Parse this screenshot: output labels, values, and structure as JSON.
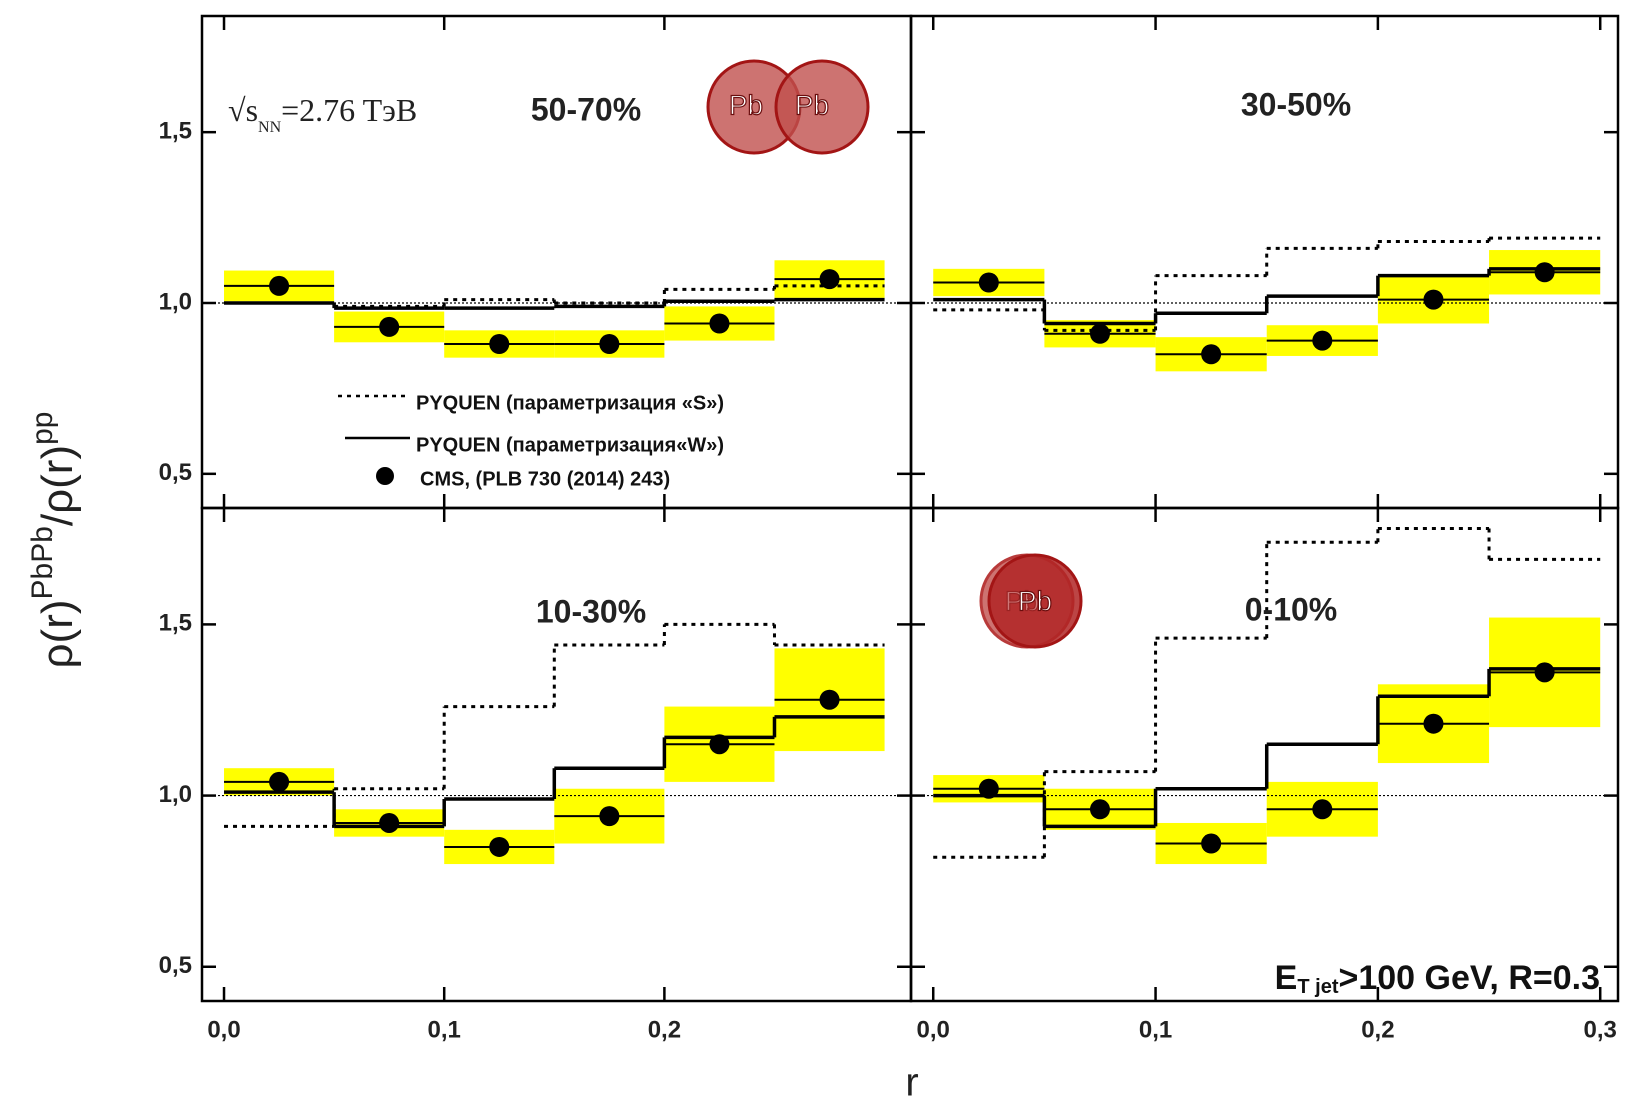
{
  "figure": {
    "y_label": {
      "num": "ρ(r)",
      "num_sup": "PbPb",
      "den": "/ρ(r)",
      "den_sup": "pp"
    },
    "x_label": "r",
    "sqrt_s": {
      "prefix": "√s",
      "sub": "NN",
      "suffix": "=2.76 TэВ"
    },
    "jet_cut": {
      "prefix": "E",
      "sub": "T jet",
      "suffix": ">100 GeV, R=0.3"
    },
    "legend": [
      {
        "name": "PYQUEN (параметризация «S»)",
        "style": "dotted",
        "color": "#000000"
      },
      {
        "name": "PYQUEN (параметризация«W»)",
        "style": "solid",
        "color": "#000000"
      },
      {
        "name": "CMS, (PLB 730 (2014) 243)",
        "style": "marker",
        "color": "#000000"
      }
    ],
    "nuclei_peripheral": [
      "Pb",
      "Pb"
    ],
    "nuclei_central": [
      "Pb",
      "Pb"
    ]
  },
  "chart_data": [
    {
      "type": "step",
      "title": "50-70%",
      "bins": [
        0,
        0.05,
        0.1,
        0.15,
        0.2,
        0.25,
        0.3
      ],
      "x": [
        0.025,
        0.075,
        0.125,
        0.175,
        0.225,
        0.275
      ],
      "pyquen_s": [
        1.0,
        0.99,
        1.01,
        1.0,
        1.04,
        1.05
      ],
      "pyquen_w": [
        1.0,
        0.985,
        0.985,
        0.99,
        1.005,
        1.01
      ],
      "cms_values": [
        1.05,
        0.93,
        0.88,
        0.88,
        0.94,
        1.07
      ],
      "cms_sys_errors": [
        0.045,
        0.045,
        0.04,
        0.04,
        0.05,
        0.055
      ],
      "reference_line": 1,
      "sys_color": "#ffff00",
      "line_color": "#000000",
      "xlim": [
        -0.01,
        0.312
      ],
      "ylim": [
        0.4,
        1.84
      ],
      "yticks": [
        {
          "value": 0.5,
          "label": "0,5"
        },
        {
          "value": 1.0,
          "label": "1,0"
        },
        {
          "value": 1.5,
          "label": "1,5"
        }
      ]
    },
    {
      "type": "step",
      "title": "30-50%",
      "bins": [
        0,
        0.05,
        0.1,
        0.15,
        0.2,
        0.25,
        0.3
      ],
      "x": [
        0.025,
        0.075,
        0.125,
        0.175,
        0.225,
        0.275
      ],
      "pyquen_s": [
        0.98,
        0.92,
        1.08,
        1.16,
        1.18,
        1.19
      ],
      "pyquen_w": [
        1.01,
        0.94,
        0.97,
        1.02,
        1.08,
        1.1
      ],
      "cms_values": [
        1.06,
        0.91,
        0.85,
        0.89,
        1.01,
        1.09
      ],
      "cms_sys_errors": [
        0.04,
        0.04,
        0.05,
        0.045,
        0.07,
        0.065
      ],
      "reference_line": 1,
      "sys_color": "#ffff00",
      "line_color": "#000000",
      "xlim": [
        -0.01,
        0.308
      ],
      "ylim": [
        0.4,
        1.84
      ]
    },
    {
      "type": "step",
      "title": "10-30%",
      "bins": [
        0,
        0.05,
        0.1,
        0.15,
        0.2,
        0.25,
        0.3
      ],
      "x": [
        0.025,
        0.075,
        0.125,
        0.175,
        0.225,
        0.275
      ],
      "pyquen_s": [
        0.91,
        1.02,
        1.26,
        1.44,
        1.5,
        1.44
      ],
      "pyquen_w": [
        1.01,
        0.91,
        0.99,
        1.08,
        1.17,
        1.23
      ],
      "cms_values": [
        1.04,
        0.92,
        0.85,
        0.94,
        1.15,
        1.28
      ],
      "cms_sys_errors": [
        0.04,
        0.04,
        0.05,
        0.08,
        0.11,
        0.15
      ],
      "reference_line": 1,
      "sys_color": "#ffff00",
      "line_color": "#000000",
      "xlim": [
        -0.01,
        0.312
      ],
      "ylim": [
        0.4,
        1.84
      ],
      "yticks": [
        {
          "value": 0.5,
          "label": "0,5"
        },
        {
          "value": 1.0,
          "label": "1,0"
        },
        {
          "value": 1.5,
          "label": "1,5"
        }
      ],
      "xticks": [
        {
          "value": 0,
          "label": "0,0"
        },
        {
          "value": 0.1,
          "label": "0,1"
        },
        {
          "value": 0.2,
          "label": "0,2"
        }
      ]
    },
    {
      "type": "step",
      "title": "0-10%",
      "bins": [
        0,
        0.05,
        0.1,
        0.15,
        0.2,
        0.25,
        0.3
      ],
      "x": [
        0.025,
        0.075,
        0.125,
        0.175,
        0.225,
        0.275
      ],
      "pyquen_s": [
        0.82,
        1.07,
        1.46,
        1.74,
        1.78,
        1.69
      ],
      "pyquen_w": [
        1.0,
        0.91,
        1.02,
        1.15,
        1.29,
        1.37
      ],
      "cms_values": [
        1.02,
        0.96,
        0.86,
        0.96,
        1.21,
        1.36
      ],
      "cms_sys_errors": [
        0.04,
        0.06,
        0.06,
        0.08,
        0.115,
        0.16
      ],
      "reference_line": 1,
      "sys_color": "#ffff00",
      "line_color": "#000000",
      "xlim": [
        -0.01,
        0.308
      ],
      "ylim": [
        0.4,
        1.84
      ],
      "xticks": [
        {
          "value": 0,
          "label": "0,0"
        },
        {
          "value": 0.1,
          "label": "0,1"
        },
        {
          "value": 0.2,
          "label": "0,2"
        },
        {
          "value": 0.3,
          "label": "0,3"
        }
      ]
    }
  ]
}
